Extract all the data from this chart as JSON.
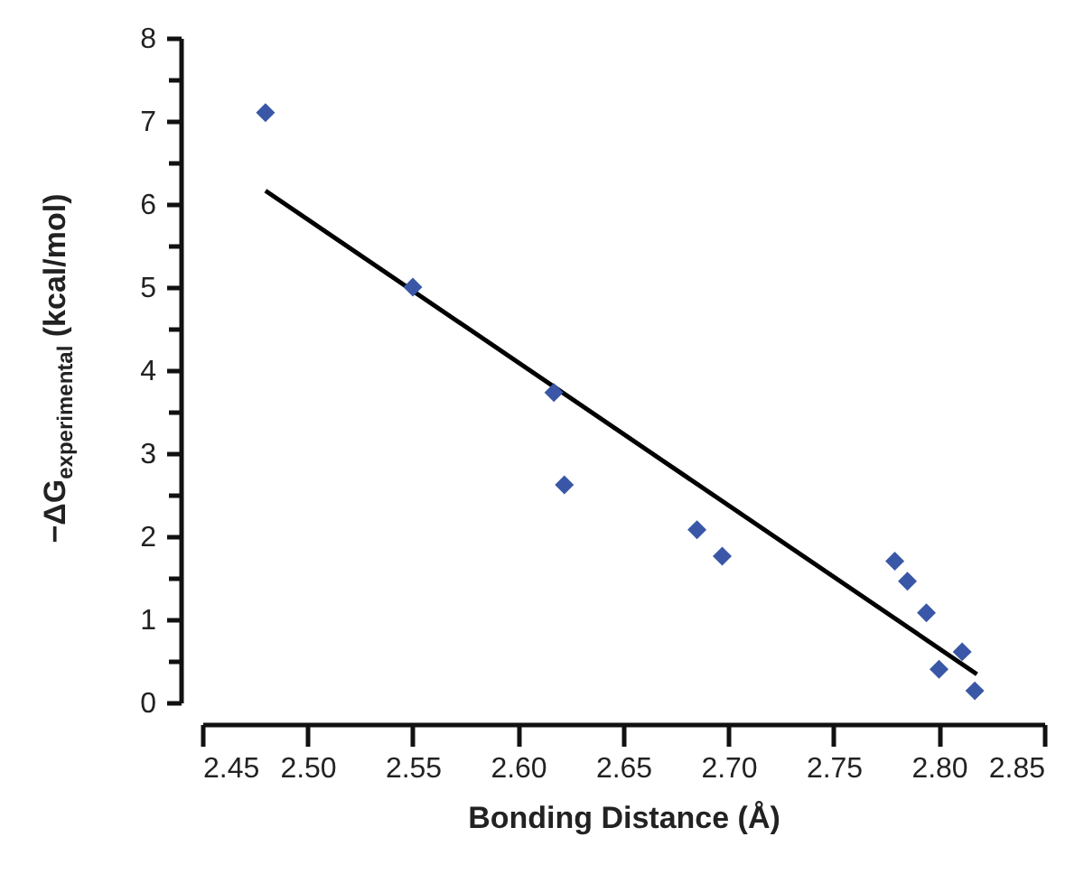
{
  "chart_data": {
    "type": "scatter",
    "xlabel": "Bonding Distance (Å)",
    "ylabel": "−ΔG$_{experimental}$ (kcal/mol)",
    "xlim": [
      2.45,
      2.85
    ],
    "xticks": [
      2.45,
      {
        "value": 2.5,
        "label": "2.50"
      },
      2.55,
      {
        "value": 2.6,
        "label": "2.60"
      },
      2.65,
      {
        "value": 2.7,
        "label": "2.70"
      },
      2.75,
      {
        "value": 2.8,
        "label": "2.80"
      },
      2.85
    ],
    "ylim": [
      0,
      8
    ],
    "yticks": [
      0,
      {
        "value": 0.5,
        "label": null
      },
      1,
      {
        "value": 1.5,
        "label": null
      },
      2,
      {
        "value": 2.5,
        "label": null
      },
      3,
      {
        "value": 3.5,
        "label": null
      },
      4,
      {
        "value": 4.5,
        "label": null
      },
      5,
      {
        "value": 5.5,
        "label": null
      },
      6,
      {
        "value": 6.5,
        "label": null
      },
      7,
      {
        "value": 7.5,
        "label": null
      },
      8
    ],
    "grid": false,
    "marker": "diamond",
    "series": [
      {
        "color": "#3a57a7",
        "x": [
          2.48,
          2.55,
          2.617,
          2.622,
          2.685,
          2.697,
          2.779,
          2.785,
          2.794,
          2.8,
          2.811,
          2.817
        ],
        "values": [
          7.1,
          5.0,
          3.73,
          2.62,
          2.08,
          1.76,
          1.7,
          1.46,
          1.08,
          0.4,
          0.61,
          0.14
        ]
      },
      {
        "type": "line",
        "color": "#000000",
        "line_style": "solid",
        "marker": "none",
        "x": [
          2.48,
          2.818
        ],
        "values": [
          6.16,
          0.34
        ]
      }
    ]
  }
}
